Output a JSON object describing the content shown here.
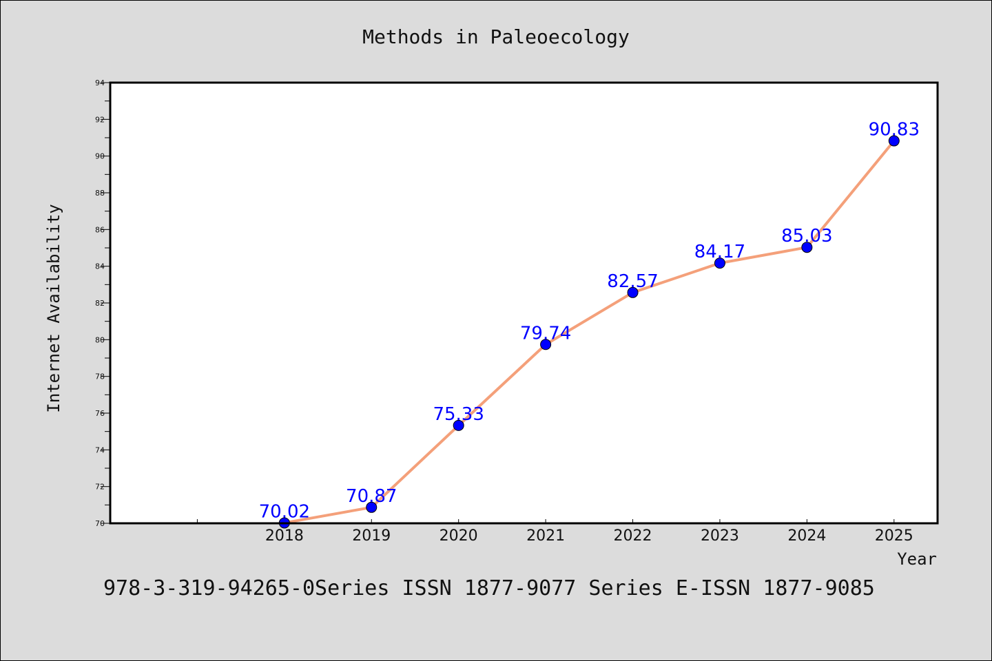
{
  "footer_text": "978-3-319-94265-0Series ISSN 1877-9077 Series E-ISSN 1877-9085",
  "colors": {
    "background": "#dcdcdc",
    "plot_background": "#ffffff",
    "line": "#f4a07a",
    "marker": "#0000ff",
    "data_label": "#0000ff"
  },
  "chart_data": {
    "type": "line",
    "title": "Methods in Paleoecology",
    "xlabel": "Year",
    "ylabel": "Internet Availability",
    "x": [
      "2018",
      "2019",
      "2020",
      "2021",
      "2022",
      "2023",
      "2024",
      "2025"
    ],
    "series": [
      {
        "values": [
          70.02,
          70.87,
          75.33,
          79.74,
          82.57,
          84.17,
          85.03,
          90.83
        ],
        "labels": [
          "70.02",
          "70.87",
          "75.33",
          "79.74",
          "82.57",
          "84.17",
          "85.03",
          "90.83"
        ]
      }
    ],
    "ylim": [
      70,
      94
    ],
    "yticks": [
      "70",
      "72",
      "74",
      "76",
      "78",
      "80",
      "82",
      "84",
      "86",
      "88",
      "90",
      "92",
      "94"
    ],
    "x_positions_range": [
      2016,
      2025.5
    ],
    "grid": false,
    "legend": "none"
  }
}
